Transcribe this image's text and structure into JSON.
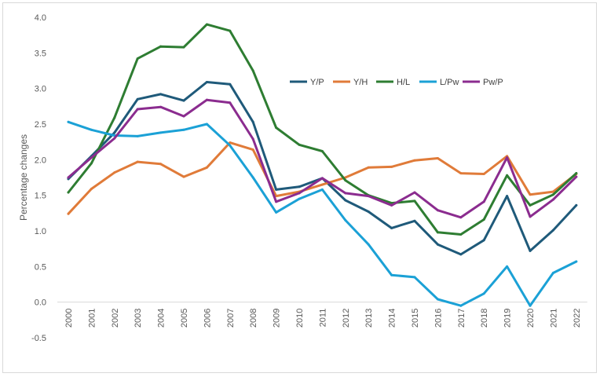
{
  "chart_data": {
    "type": "line",
    "title": "",
    "xlabel": "",
    "ylabel": "Percentage changes",
    "ylim": [
      -0.5,
      4.0
    ],
    "ytick_step": 0.5,
    "grid": false,
    "legend_position": "top-right",
    "categories": [
      "2000",
      "2001",
      "2002",
      "2003",
      "2004",
      "2005",
      "2006",
      "2007",
      "2008",
      "2009",
      "2010",
      "2011",
      "2012",
      "2013",
      "2014",
      "2015",
      "2016",
      "2017",
      "2018",
      "2019",
      "2020",
      "2021",
      "2022"
    ],
    "series": [
      {
        "name": "Y/P",
        "color": "#1f5a7a",
        "values": [
          1.73,
          2.05,
          2.38,
          2.85,
          2.92,
          2.83,
          3.09,
          3.06,
          2.53,
          1.58,
          1.62,
          1.74,
          1.43,
          1.27,
          1.04,
          1.14,
          0.81,
          0.67,
          0.87,
          1.49,
          0.72,
          1.01,
          1.36
        ]
      },
      {
        "name": "Y/H",
        "color": "#e07b39",
        "values": [
          1.24,
          1.59,
          1.82,
          1.97,
          1.94,
          1.76,
          1.89,
          2.24,
          2.14,
          1.49,
          1.55,
          1.65,
          1.75,
          1.89,
          1.9,
          1.99,
          2.02,
          1.81,
          1.8,
          2.05,
          1.51,
          1.55,
          1.8
        ]
      },
      {
        "name": "H/L",
        "color": "#2e7d32",
        "values": [
          1.54,
          1.95,
          2.59,
          3.42,
          3.59,
          3.58,
          3.9,
          3.81,
          3.25,
          2.45,
          2.21,
          2.12,
          1.71,
          1.5,
          1.39,
          1.42,
          0.98,
          0.95,
          1.16,
          1.78,
          1.36,
          1.51,
          1.81
        ]
      },
      {
        "name": "L/Pw",
        "color": "#1ba1d6",
        "values": [
          2.53,
          2.42,
          2.34,
          2.33,
          2.38,
          2.42,
          2.5,
          2.2,
          1.75,
          1.26,
          1.45,
          1.58,
          1.15,
          0.81,
          0.38,
          0.35,
          0.04,
          -0.05,
          0.12,
          0.5,
          -0.05,
          0.41,
          0.57
        ]
      },
      {
        "name": "Pw/P",
        "color": "#8b2c8f",
        "values": [
          1.75,
          2.03,
          2.3,
          2.71,
          2.74,
          2.61,
          2.84,
          2.8,
          2.29,
          1.41,
          1.53,
          1.74,
          1.53,
          1.49,
          1.36,
          1.54,
          1.29,
          1.19,
          1.41,
          2.03,
          1.2,
          1.44,
          1.76
        ]
      }
    ]
  }
}
